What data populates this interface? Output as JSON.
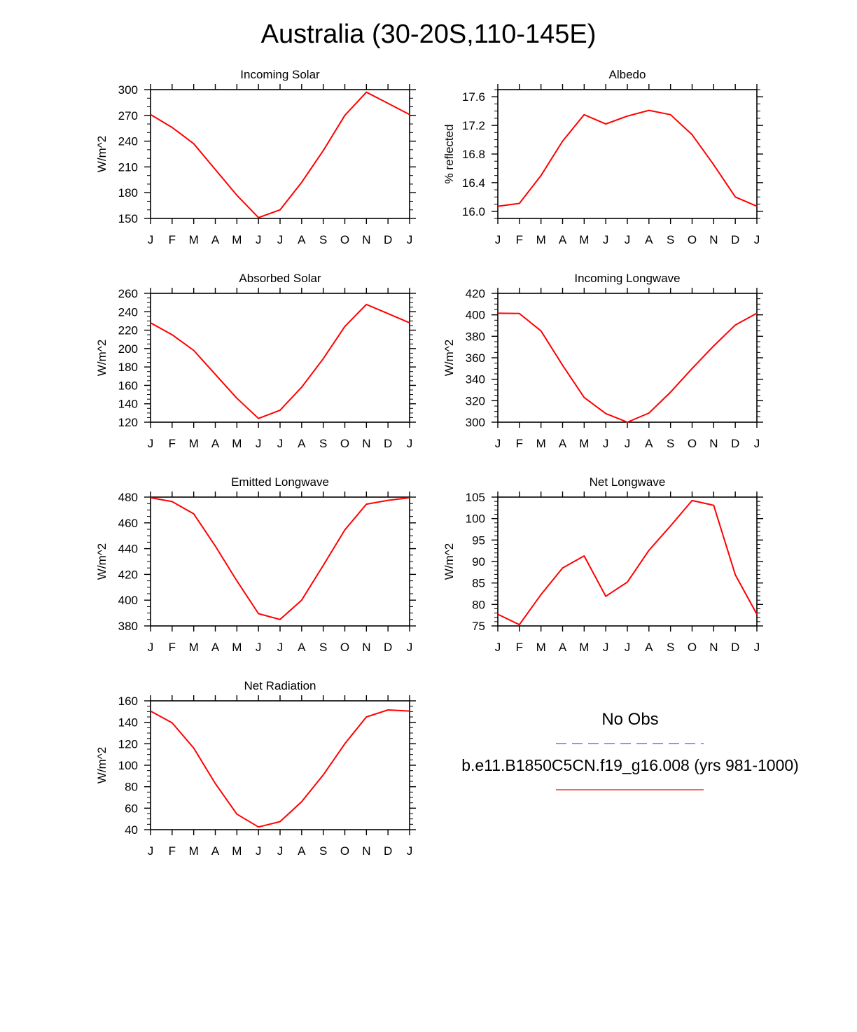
{
  "figure_title": "Australia (30-20S,110-145E)",
  "legend": {
    "title": "No Obs",
    "series_label": "b.e11.B1850C5CN.f19_g16.008 (yrs 981-1000)",
    "obs_color": "#5050ff",
    "model_color": "#ff0000"
  },
  "chart_data": [
    {
      "type": "line",
      "title": "Incoming Solar",
      "ylabel": "W/m^2",
      "xlabel": "",
      "categories": [
        "J",
        "F",
        "M",
        "A",
        "M",
        "J",
        "J",
        "A",
        "S",
        "O",
        "N",
        "D",
        "J"
      ],
      "ylim": [
        150,
        300
      ],
      "yticks": [
        150,
        180,
        210,
        240,
        270,
        300
      ],
      "yminor": 10,
      "ytick_decimals": 0,
      "series": [
        {
          "name": "b.e11.B1850C5CN.f19_g16.008 (yrs 981-1000)",
          "color": "#ff0000",
          "values": [
            271,
            256,
            237,
            207,
            177,
            151,
            160,
            192,
            229,
            270,
            297,
            284,
            271
          ]
        }
      ]
    },
    {
      "type": "line",
      "title": "Albedo",
      "ylabel": "% reflected",
      "xlabel": "",
      "categories": [
        "J",
        "F",
        "M",
        "A",
        "M",
        "J",
        "J",
        "A",
        "S",
        "O",
        "N",
        "D",
        "J"
      ],
      "ylim": [
        15.9,
        17.7
      ],
      "yticks": [
        16.0,
        16.4,
        16.8,
        17.2,
        17.6
      ],
      "yminor": 0.1,
      "ytick_decimals": 1,
      "series": [
        {
          "name": "b.e11.B1850C5CN.f19_g16.008 (yrs 981-1000)",
          "color": "#ff0000",
          "values": [
            16.07,
            16.11,
            16.5,
            16.98,
            17.35,
            17.22,
            17.33,
            17.41,
            17.35,
            17.07,
            16.65,
            16.2,
            16.07
          ]
        }
      ]
    },
    {
      "type": "line",
      "title": "Absorbed Solar",
      "ylabel": "W/m^2",
      "xlabel": "",
      "categories": [
        "J",
        "F",
        "M",
        "A",
        "M",
        "J",
        "J",
        "A",
        "S",
        "O",
        "N",
        "D",
        "J"
      ],
      "ylim": [
        120,
        260
      ],
      "yticks": [
        120,
        140,
        160,
        180,
        200,
        220,
        240,
        260
      ],
      "yminor": 5,
      "ytick_decimals": 0,
      "series": [
        {
          "name": "b.e11.B1850C5CN.f19_g16.008 (yrs 981-1000)",
          "color": "#ff0000",
          "values": [
            228,
            215,
            198,
            172,
            146,
            124,
            133,
            158,
            189,
            224,
            248,
            238,
            228
          ]
        }
      ]
    },
    {
      "type": "line",
      "title": "Incoming Longwave",
      "ylabel": "W/m^2",
      "xlabel": "",
      "categories": [
        "J",
        "F",
        "M",
        "A",
        "M",
        "J",
        "J",
        "A",
        "S",
        "O",
        "N",
        "D",
        "J"
      ],
      "ylim": [
        300,
        420
      ],
      "yticks": [
        300,
        320,
        340,
        360,
        380,
        400,
        420
      ],
      "yminor": 5,
      "ytick_decimals": 0,
      "series": [
        {
          "name": "b.e11.B1850C5CN.f19_g16.008 (yrs 981-1000)",
          "color": "#ff0000",
          "values": [
            401.5,
            401.2,
            385,
            353,
            323,
            308,
            300,
            308.5,
            328,
            350,
            371,
            390.5,
            401.5
          ]
        }
      ]
    },
    {
      "type": "line",
      "title": "Emitted Longwave",
      "ylabel": "W/m^2",
      "xlabel": "",
      "categories": [
        "J",
        "F",
        "M",
        "A",
        "M",
        "J",
        "J",
        "A",
        "S",
        "O",
        "N",
        "D",
        "J"
      ],
      "ylim": [
        380,
        480
      ],
      "yticks": [
        380,
        400,
        420,
        440,
        460,
        480
      ],
      "yminor": 5,
      "ytick_decimals": 0,
      "series": [
        {
          "name": "b.e11.B1850C5CN.f19_g16.008 (yrs 981-1000)",
          "color": "#ff0000",
          "values": [
            479.5,
            476.5,
            467,
            442,
            415,
            389.5,
            385,
            400,
            427,
            454.5,
            474.5,
            477.5,
            479.5
          ]
        }
      ]
    },
    {
      "type": "line",
      "title": "Net Longwave",
      "ylabel": "W/m^2",
      "xlabel": "",
      "categories": [
        "J",
        "F",
        "M",
        "A",
        "M",
        "J",
        "J",
        "A",
        "S",
        "O",
        "N",
        "D",
        "J"
      ],
      "ylim": [
        75,
        105
      ],
      "yticks": [
        75,
        80,
        85,
        90,
        95,
        100,
        105
      ],
      "yminor": 1,
      "ytick_decimals": 0,
      "series": [
        {
          "name": "b.e11.B1850C5CN.f19_g16.008 (yrs 981-1000)",
          "color": "#ff0000",
          "values": [
            77.7,
            75.3,
            82.3,
            88.5,
            91.3,
            81.9,
            85.2,
            92.6,
            98.3,
            104.2,
            103.1,
            86.9,
            77.7
          ]
        }
      ]
    },
    {
      "type": "line",
      "title": "Net Radiation",
      "ylabel": "W/m^2",
      "xlabel": "",
      "categories": [
        "J",
        "F",
        "M",
        "A",
        "M",
        "J",
        "J",
        "A",
        "S",
        "O",
        "N",
        "D",
        "J"
      ],
      "ylim": [
        40,
        160
      ],
      "yticks": [
        40,
        60,
        80,
        100,
        120,
        140,
        160
      ],
      "yminor": 5,
      "ytick_decimals": 0,
      "series": [
        {
          "name": "b.e11.B1850C5CN.f19_g16.008 (yrs 981-1000)",
          "color": "#ff0000",
          "values": [
            150.5,
            139.5,
            116,
            83,
            54.5,
            42.5,
            47.5,
            66,
            91,
            120,
            145,
            151.5,
            150.5
          ]
        }
      ]
    }
  ]
}
